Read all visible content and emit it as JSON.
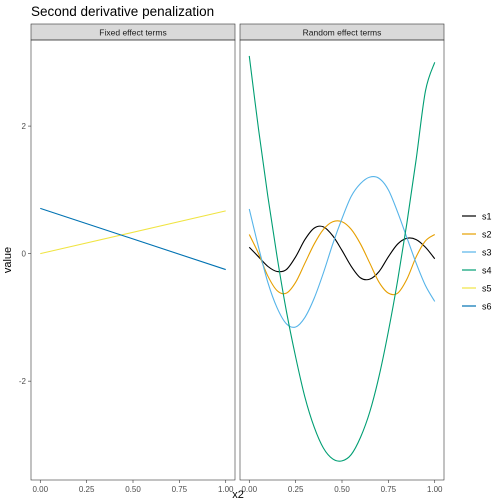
{
  "chart_data": {
    "type": "line",
    "title": "Second derivative penalization",
    "xlabel": "x2",
    "ylabel": "value",
    "xlim": [
      -0.05,
      1.05
    ],
    "ylim": [
      -3.55,
      3.35
    ],
    "x_ticks": [
      0,
      0.25,
      0.5,
      0.75,
      1
    ],
    "x_tick_labels": [
      "0.00",
      "0.25",
      "0.50",
      "0.75",
      "1.00"
    ],
    "y_ticks": [
      -2,
      0,
      2
    ],
    "y_tick_labels": [
      "-2",
      "0",
      "2"
    ],
    "grid": false,
    "legend_position": "right",
    "legend": [
      {
        "name": "s1",
        "color": "#000000"
      },
      {
        "name": "s2",
        "color": "#E69F00"
      },
      {
        "name": "s3",
        "color": "#56B4E9"
      },
      {
        "name": "s4",
        "color": "#009E73"
      },
      {
        "name": "s5",
        "color": "#F0E442"
      },
      {
        "name": "s6",
        "color": "#0072B2"
      }
    ],
    "panels": [
      {
        "strip": "Fixed effect terms",
        "series": [
          {
            "name": "s5",
            "color": "#F0E442",
            "x": [
              0,
              1
            ],
            "y": [
              0.0,
              0.67
            ]
          },
          {
            "name": "s6",
            "color": "#0072B2",
            "x": [
              0,
              1
            ],
            "y": [
              0.71,
              -0.25
            ]
          }
        ]
      },
      {
        "strip": "Random effect terms",
        "series": [
          {
            "name": "s1",
            "color": "#000000",
            "x": [
              0,
              0.05,
              0.1,
              0.15,
              0.2,
              0.25,
              0.3,
              0.35,
              0.4,
              0.45,
              0.5,
              0.55,
              0.6,
              0.65,
              0.7,
              0.75,
              0.8,
              0.85,
              0.9,
              0.95,
              1
            ],
            "y": [
              0.1,
              -0.05,
              -0.2,
              -0.28,
              -0.25,
              -0.05,
              0.22,
              0.4,
              0.42,
              0.28,
              0.05,
              -0.2,
              -0.38,
              -0.4,
              -0.28,
              -0.05,
              0.15,
              0.24,
              0.22,
              0.1,
              -0.08
            ]
          },
          {
            "name": "s2",
            "color": "#E69F00",
            "x": [
              0,
              0.05,
              0.1,
              0.15,
              0.2,
              0.25,
              0.3,
              0.35,
              0.4,
              0.45,
              0.5,
              0.55,
              0.6,
              0.65,
              0.7,
              0.75,
              0.8,
              0.85,
              0.9,
              0.95,
              1
            ],
            "y": [
              0.3,
              0.0,
              -0.35,
              -0.58,
              -0.62,
              -0.45,
              -0.15,
              0.15,
              0.38,
              0.5,
              0.5,
              0.38,
              0.15,
              -0.15,
              -0.45,
              -0.62,
              -0.62,
              -0.4,
              -0.05,
              0.2,
              0.3
            ]
          },
          {
            "name": "s3",
            "color": "#56B4E9",
            "x": [
              0,
              0.05,
              0.1,
              0.15,
              0.2,
              0.25,
              0.3,
              0.35,
              0.4,
              0.45,
              0.5,
              0.55,
              0.6,
              0.65,
              0.7,
              0.75,
              0.8,
              0.85,
              0.9,
              0.95,
              1
            ],
            "y": [
              0.7,
              0.1,
              -0.45,
              -0.85,
              -1.1,
              -1.15,
              -1.0,
              -0.7,
              -0.3,
              0.15,
              0.55,
              0.9,
              1.1,
              1.2,
              1.18,
              1.0,
              0.65,
              0.25,
              -0.15,
              -0.5,
              -0.75
            ]
          },
          {
            "name": "s4",
            "color": "#009E73",
            "x": [
              0,
              0.05,
              0.1,
              0.15,
              0.2,
              0.25,
              0.3,
              0.35,
              0.4,
              0.45,
              0.5,
              0.55,
              0.6,
              0.65,
              0.7,
              0.75,
              0.8,
              0.85,
              0.9,
              0.95,
              1
            ],
            "y": [
              3.1,
              1.95,
              0.9,
              -0.05,
              -0.9,
              -1.62,
              -2.25,
              -2.72,
              -3.05,
              -3.22,
              -3.25,
              -3.15,
              -2.88,
              -2.48,
              -1.92,
              -1.22,
              -0.42,
              0.48,
              1.48,
              2.55,
              3.0
            ]
          }
        ]
      }
    ]
  }
}
